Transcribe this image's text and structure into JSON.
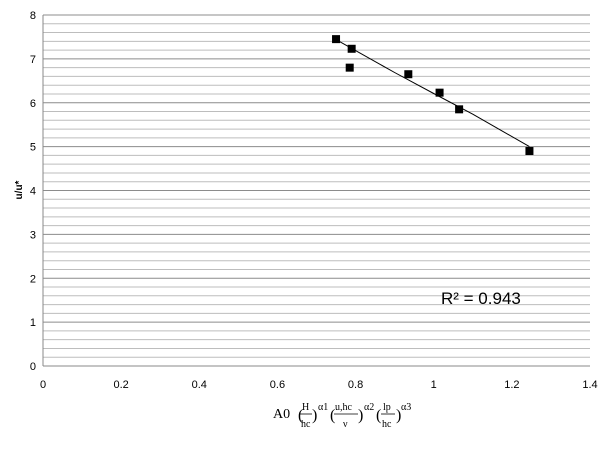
{
  "chart_data": {
    "type": "scatter",
    "ylabel": "u/u*",
    "xlabel": {
      "coef": "A0",
      "sub0": "0",
      "f1_num": "H",
      "f1_den": "hc",
      "a1": "α1",
      "f2_num": "u,hc",
      "f2_den": "ν",
      "a2": "α2",
      "f3_num": "lp",
      "f3_den": "hc",
      "a3": "α3"
    },
    "xlim": [
      0,
      1.4
    ],
    "ylim": [
      0,
      8
    ],
    "x_ticks": [
      "0",
      "0.2",
      "0.4",
      "0.6",
      "0.8",
      "1",
      "1.2",
      "1.4"
    ],
    "y_ticks": [
      "0",
      "1",
      "2",
      "3",
      "4",
      "5",
      "6",
      "7",
      "8"
    ],
    "grid": "horizontal minor",
    "points": [
      {
        "x": 0.75,
        "y": 7.45
      },
      {
        "x": 0.79,
        "y": 7.23
      },
      {
        "x": 0.785,
        "y": 6.8
      },
      {
        "x": 0.935,
        "y": 6.65
      },
      {
        "x": 1.015,
        "y": 6.23
      },
      {
        "x": 1.065,
        "y": 5.85
      },
      {
        "x": 1.245,
        "y": 4.9
      }
    ],
    "trendline": {
      "type": "polynomial",
      "x": [
        0.75,
        0.9,
        1.0,
        1.1,
        1.245
      ],
      "y": [
        7.44,
        6.69,
        6.21,
        5.74,
        5.0
      ]
    },
    "annotation": "R² = 0.943"
  }
}
